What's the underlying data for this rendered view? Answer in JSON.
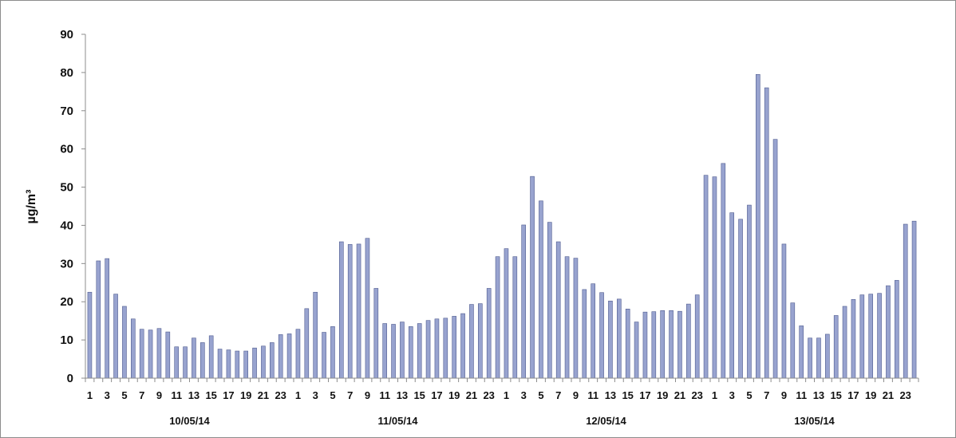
{
  "chart_data": {
    "type": "bar",
    "title": "",
    "xlabel": "",
    "ylabel": "µg/m³",
    "ylim": [
      0,
      90
    ],
    "yticks": [
      0,
      10,
      20,
      30,
      40,
      50,
      60,
      70,
      80,
      90
    ],
    "grid": false,
    "bar_color": "#98a3cf",
    "bar_edge_color": "#4f5b8f",
    "axis_color": "#8c8c8c",
    "date_groups": [
      "10/05/14",
      "11/05/14",
      "12/05/14",
      "13/05/14"
    ],
    "hour_labels": [
      "1",
      "3",
      "5",
      "7",
      "9",
      "11",
      "13",
      "15",
      "17",
      "19",
      "21",
      "23"
    ],
    "categories": [
      "10/05/14 1",
      "10/05/14 2",
      "10/05/14 3",
      "10/05/14 4",
      "10/05/14 5",
      "10/05/14 6",
      "10/05/14 7",
      "10/05/14 8",
      "10/05/14 9",
      "10/05/14 10",
      "10/05/14 11",
      "10/05/14 12",
      "10/05/14 13",
      "10/05/14 14",
      "10/05/14 15",
      "10/05/14 16",
      "10/05/14 17",
      "10/05/14 18",
      "10/05/14 19",
      "10/05/14 20",
      "10/05/14 21",
      "10/05/14 22",
      "10/05/14 23",
      "10/05/14 24",
      "11/05/14 1",
      "11/05/14 2",
      "11/05/14 3",
      "11/05/14 4",
      "11/05/14 5",
      "11/05/14 6",
      "11/05/14 7",
      "11/05/14 8",
      "11/05/14 9",
      "11/05/14 10",
      "11/05/14 11",
      "11/05/14 12",
      "11/05/14 13",
      "11/05/14 14",
      "11/05/14 15",
      "11/05/14 16",
      "11/05/14 17",
      "11/05/14 18",
      "11/05/14 19",
      "11/05/14 20",
      "11/05/14 21",
      "11/05/14 22",
      "11/05/14 23",
      "11/05/14 24",
      "12/05/14 1",
      "12/05/14 2",
      "12/05/14 3",
      "12/05/14 4",
      "12/05/14 5",
      "12/05/14 6",
      "12/05/14 7",
      "12/05/14 8",
      "12/05/14 9",
      "12/05/14 10",
      "12/05/14 11",
      "12/05/14 12",
      "12/05/14 13",
      "12/05/14 14",
      "12/05/14 15",
      "12/05/14 16",
      "12/05/14 17",
      "12/05/14 18",
      "12/05/14 19",
      "12/05/14 20",
      "12/05/14 21",
      "12/05/14 22",
      "12/05/14 23",
      "12/05/14 24",
      "13/05/14 1",
      "13/05/14 2",
      "13/05/14 3",
      "13/05/14 4",
      "13/05/14 5",
      "13/05/14 6",
      "13/05/14 7",
      "13/05/14 8",
      "13/05/14 9",
      "13/05/14 10",
      "13/05/14 11",
      "13/05/14 12",
      "13/05/14 13",
      "13/05/14 14",
      "13/05/14 15",
      "13/05/14 16",
      "13/05/14 17",
      "13/05/14 18",
      "13/05/14 19",
      "13/05/14 20",
      "13/05/14 21",
      "13/05/14 22",
      "13/05/14 23",
      "13/05/14 24"
    ],
    "values": [
      22.5,
      30.7,
      31.3,
      22.0,
      18.8,
      15.5,
      12.8,
      12.6,
      13.0,
      12.1,
      8.2,
      8.2,
      10.5,
      9.3,
      11.1,
      7.6,
      7.4,
      7.1,
      7.1,
      7.9,
      8.4,
      9.3,
      11.4,
      11.6,
      12.8,
      18.2,
      22.5,
      12.0,
      13.5,
      35.7,
      35.0,
      35.1,
      36.6,
      23.5,
      14.3,
      14.1,
      14.7,
      13.5,
      14.3,
      15.1,
      15.5,
      15.7,
      16.2,
      16.9,
      19.3,
      19.5,
      23.5,
      31.8,
      33.9,
      31.8,
      40.1,
      52.8,
      46.4,
      40.8,
      35.7,
      31.8,
      31.4,
      23.2,
      24.7,
      22.4,
      20.2,
      20.7,
      18.1,
      14.7,
      17.3,
      17.4,
      17.7,
      17.7,
      17.5,
      19.4,
      21.8,
      53.1,
      52.7,
      56.2,
      43.3,
      41.6,
      45.3,
      79.5,
      76.0,
      62.5,
      35.1,
      19.7,
      13.7,
      10.5,
      10.5,
      11.5,
      16.4,
      18.8,
      20.6,
      21.8,
      22.0,
      22.2,
      24.2,
      25.6,
      40.3,
      41.1
    ]
  }
}
